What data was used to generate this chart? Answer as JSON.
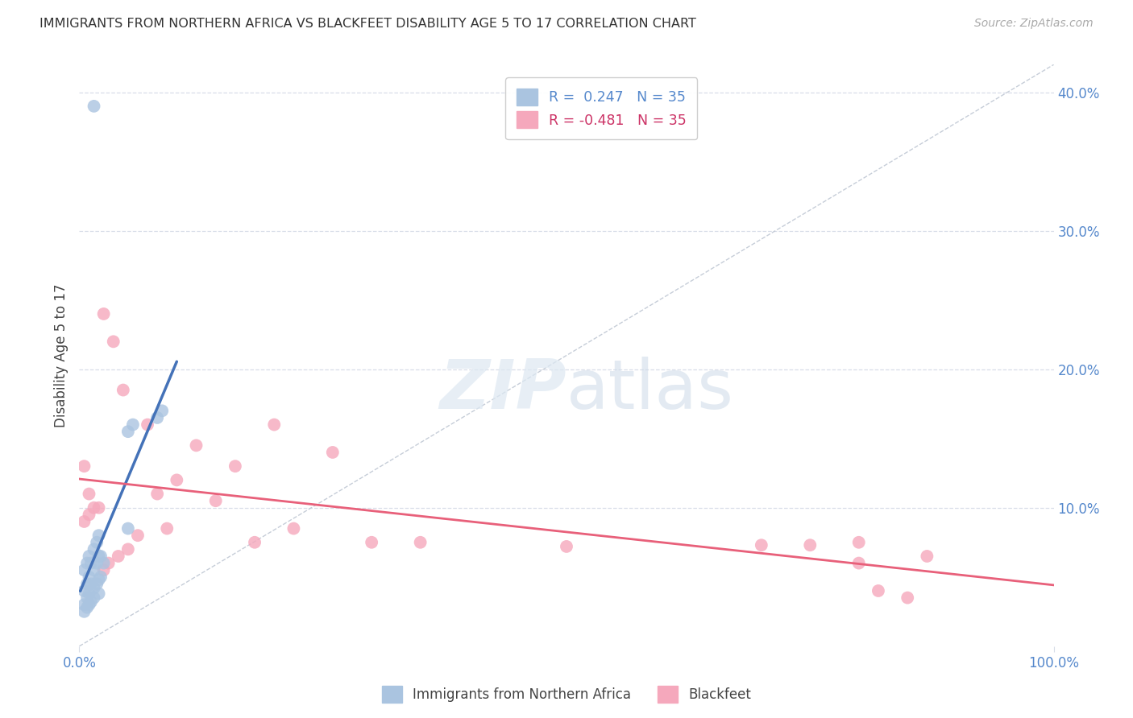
{
  "title": "IMMIGRANTS FROM NORTHERN AFRICA VS BLACKFEET DISABILITY AGE 5 TO 17 CORRELATION CHART",
  "source": "Source: ZipAtlas.com",
  "ylabel": "Disability Age 5 to 17",
  "xlim": [
    0.0,
    1.0
  ],
  "ylim": [
    0.0,
    0.42
  ],
  "xticks": [
    0.0,
    1.0
  ],
  "xtick_labels": [
    "0.0%",
    "100.0%"
  ],
  "yticks_right": [
    0.1,
    0.2,
    0.3,
    0.4
  ],
  "ytick_labels_right": [
    "10.0%",
    "20.0%",
    "30.0%",
    "40.0%"
  ],
  "grid_yticks": [
    0.1,
    0.2,
    0.3,
    0.4
  ],
  "R_blue": 0.247,
  "N_blue": 35,
  "R_pink": -0.481,
  "N_pink": 35,
  "blue_color": "#aac4e0",
  "pink_color": "#f5a8bc",
  "blue_line_color": "#4472b8",
  "pink_line_color": "#e8607a",
  "diag_color": "#c0c8d4",
  "legend_label_blue": "Immigrants from Northern Africa",
  "legend_label_pink": "Blackfeet",
  "blue_scatter_x": [
    0.005,
    0.008,
    0.01,
    0.012,
    0.015,
    0.018,
    0.02,
    0.022,
    0.025,
    0.005,
    0.008,
    0.01,
    0.012,
    0.015,
    0.018,
    0.02,
    0.022,
    0.005,
    0.008,
    0.01,
    0.012,
    0.015,
    0.018,
    0.02,
    0.005,
    0.008,
    0.01,
    0.015,
    0.02,
    0.05,
    0.055,
    0.08,
    0.085,
    0.015,
    0.05
  ],
  "blue_scatter_y": [
    0.055,
    0.06,
    0.065,
    0.06,
    0.07,
    0.075,
    0.08,
    0.065,
    0.06,
    0.04,
    0.045,
    0.05,
    0.045,
    0.055,
    0.06,
    0.065,
    0.05,
    0.03,
    0.035,
    0.038,
    0.032,
    0.042,
    0.045,
    0.048,
    0.025,
    0.028,
    0.03,
    0.035,
    0.038,
    0.155,
    0.16,
    0.165,
    0.17,
    0.39,
    0.085
  ],
  "pink_scatter_x": [
    0.005,
    0.01,
    0.015,
    0.02,
    0.025,
    0.03,
    0.04,
    0.05,
    0.06,
    0.07,
    0.08,
    0.09,
    0.1,
    0.12,
    0.14,
    0.16,
    0.18,
    0.2,
    0.22,
    0.26,
    0.3,
    0.35,
    0.5,
    0.7,
    0.75,
    0.8,
    0.82,
    0.85,
    0.87,
    0.005,
    0.01,
    0.025,
    0.035,
    0.045,
    0.8
  ],
  "pink_scatter_y": [
    0.09,
    0.095,
    0.1,
    0.1,
    0.055,
    0.06,
    0.065,
    0.07,
    0.08,
    0.16,
    0.11,
    0.085,
    0.12,
    0.145,
    0.105,
    0.13,
    0.075,
    0.16,
    0.085,
    0.14,
    0.075,
    0.075,
    0.072,
    0.073,
    0.073,
    0.075,
    0.04,
    0.035,
    0.065,
    0.13,
    0.11,
    0.24,
    0.22,
    0.185,
    0.06
  ],
  "background_color": "#ffffff",
  "grid_color": "#d8dde8",
  "tick_color": "#5588cc",
  "title_color": "#333333",
  "source_color": "#aaaaaa",
  "ylabel_color": "#444444"
}
